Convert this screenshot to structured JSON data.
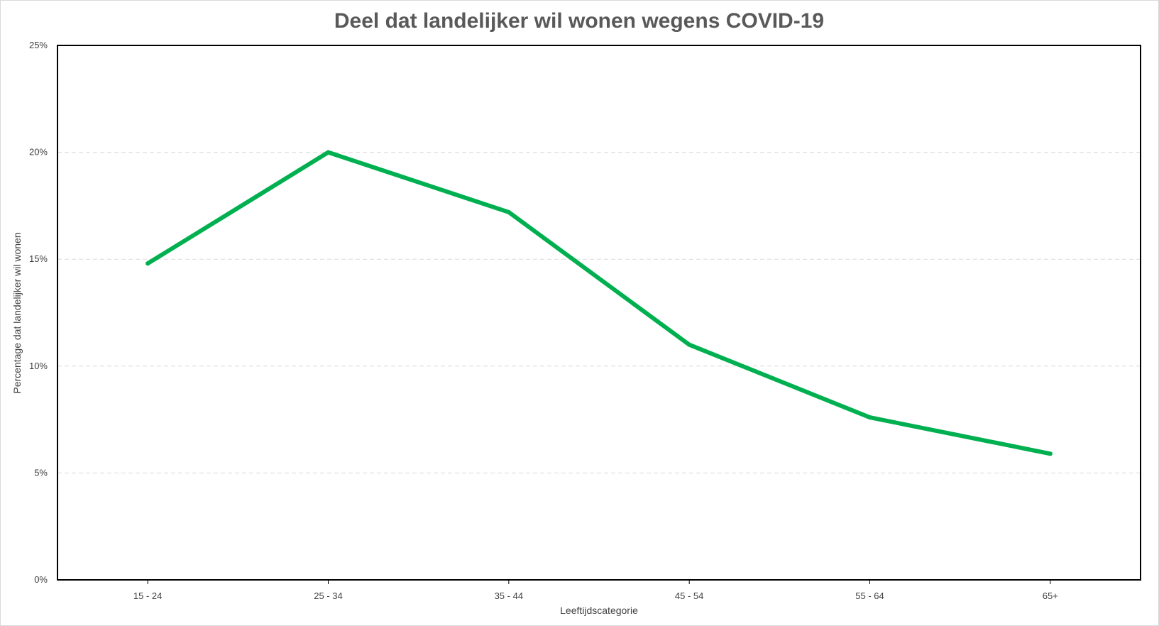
{
  "chart_data": {
    "type": "line",
    "title": "Deel dat landelijker wil wonen wegens COVID-19",
    "xlabel": "Leeftijdscategorie",
    "ylabel": "Percentage dat landelijker wil wonen",
    "categories": [
      "15 - 24",
      "25 - 34",
      "35 - 44",
      "45 - 54",
      "55 - 64",
      "65+"
    ],
    "series": [
      {
        "values": [
          14.8,
          20.0,
          17.2,
          11.0,
          7.6,
          5.9
        ],
        "color": "#00b050"
      }
    ],
    "ylim": [
      0,
      25
    ],
    "yticks": [
      0,
      5,
      10,
      15,
      20,
      25
    ],
    "ytick_labels": [
      "0%",
      "5%",
      "10%",
      "15%",
      "20%",
      "25%"
    ],
    "grid": "horizontal-dashed",
    "legend": "none"
  }
}
